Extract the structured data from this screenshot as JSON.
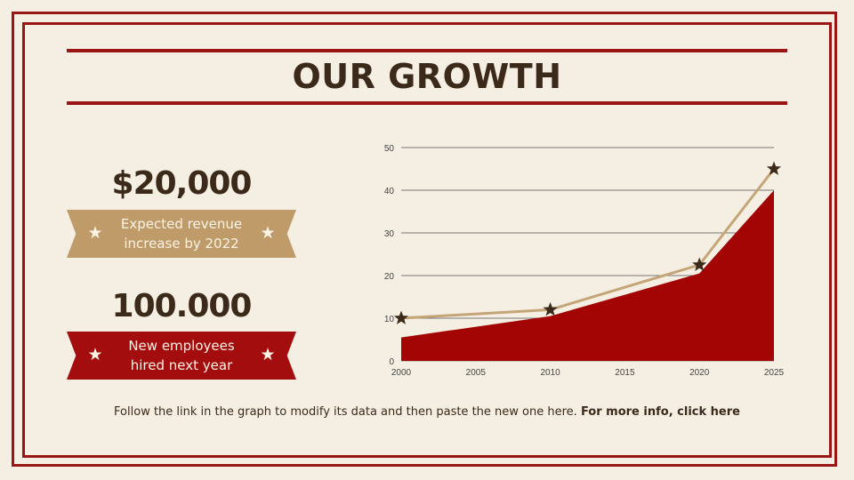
{
  "title": "OUR GROWTH",
  "stats": [
    {
      "value": "$20,000",
      "caption_line1": "Expected revenue",
      "caption_line2": "increase by 2022",
      "ribbon_color": "#bf9b6a"
    },
    {
      "value": "100.000",
      "caption_line1": "New employees",
      "caption_line2": "hired next year",
      "ribbon_color": "#a30d0d"
    }
  ],
  "footer": {
    "text": "Follow the link in the graph to modify its data and then paste the new one here.",
    "link": "For more info, click here"
  },
  "colors": {
    "accent_red": "#9a1515",
    "area_red": "#a30505",
    "line_tan": "#c4a578",
    "text_dark": "#3b2a1a",
    "background": "#f5eee3"
  },
  "icons": {
    "ribbon_star": "star-icon",
    "marker": "star-marker-icon"
  },
  "chart_data": {
    "type": "line",
    "x_ticks": [
      2000,
      2005,
      2010,
      2015,
      2020,
      2025
    ],
    "y_ticks": [
      0,
      10,
      20,
      30,
      40,
      50
    ],
    "xlim": [
      2000,
      2025
    ],
    "ylim": [
      0,
      50
    ],
    "grid": true,
    "series": [
      {
        "kind": "area",
        "color": "#a30505",
        "x": [
          2000,
          2010,
          2020,
          2025
        ],
        "y": [
          5.5,
          10.5,
          20.5,
          40
        ]
      },
      {
        "kind": "line",
        "marker": "star",
        "color": "#c4a578",
        "x": [
          2000,
          2010,
          2020,
          2025
        ],
        "y": [
          10,
          12,
          22.5,
          45
        ]
      }
    ]
  }
}
